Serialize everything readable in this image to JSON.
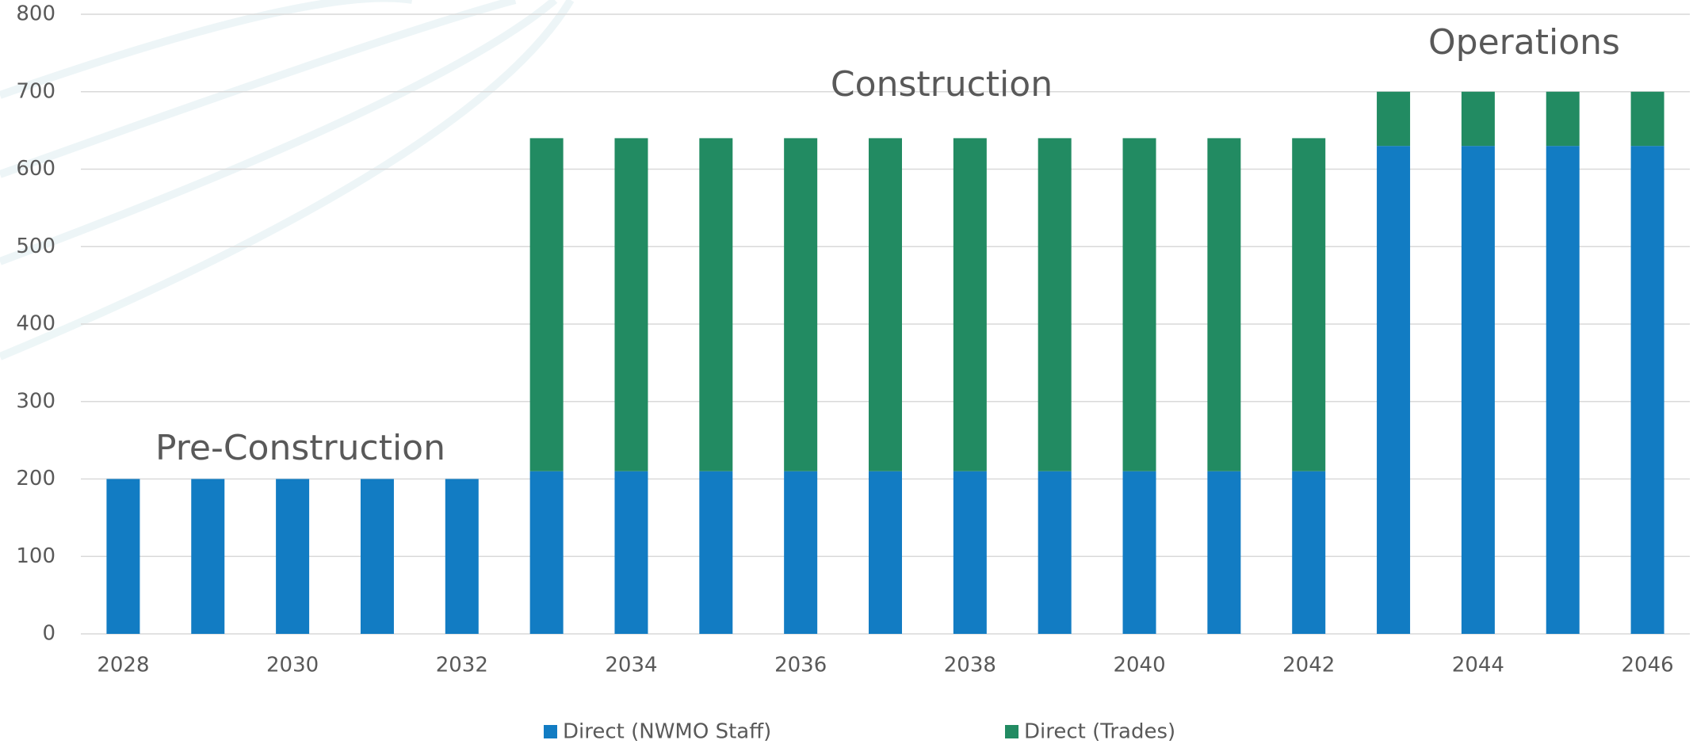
{
  "chart_data": {
    "type": "stacked_bar",
    "categories": [
      "2028",
      null,
      "2030",
      null,
      "2032",
      null,
      "2034",
      null,
      "2036",
      null,
      "2038",
      null,
      "2040",
      null,
      "2042",
      null,
      "2044",
      null,
      "2046"
    ],
    "series": [
      {
        "name": "Direct (NWMO Staff)",
        "color": "#127cc3",
        "values": [
          200,
          200,
          200,
          200,
          200,
          210,
          210,
          210,
          210,
          210,
          210,
          210,
          210,
          210,
          210,
          630,
          630,
          630,
          630
        ]
      },
      {
        "name": "Direct (Trades)",
        "color": "#228b62",
        "values": [
          0,
          0,
          0,
          0,
          0,
          430,
          430,
          430,
          430,
          430,
          430,
          430,
          430,
          430,
          430,
          70,
          70,
          70,
          70
        ]
      }
    ],
    "ylim": [
      0,
      800
    ],
    "yticks": [
      0,
      100,
      200,
      300,
      400,
      500,
      600,
      700,
      800
    ],
    "grid": true,
    "legend": "bottom",
    "annotations": [
      "Pre-Construction",
      "Construction",
      "Operations"
    ]
  }
}
